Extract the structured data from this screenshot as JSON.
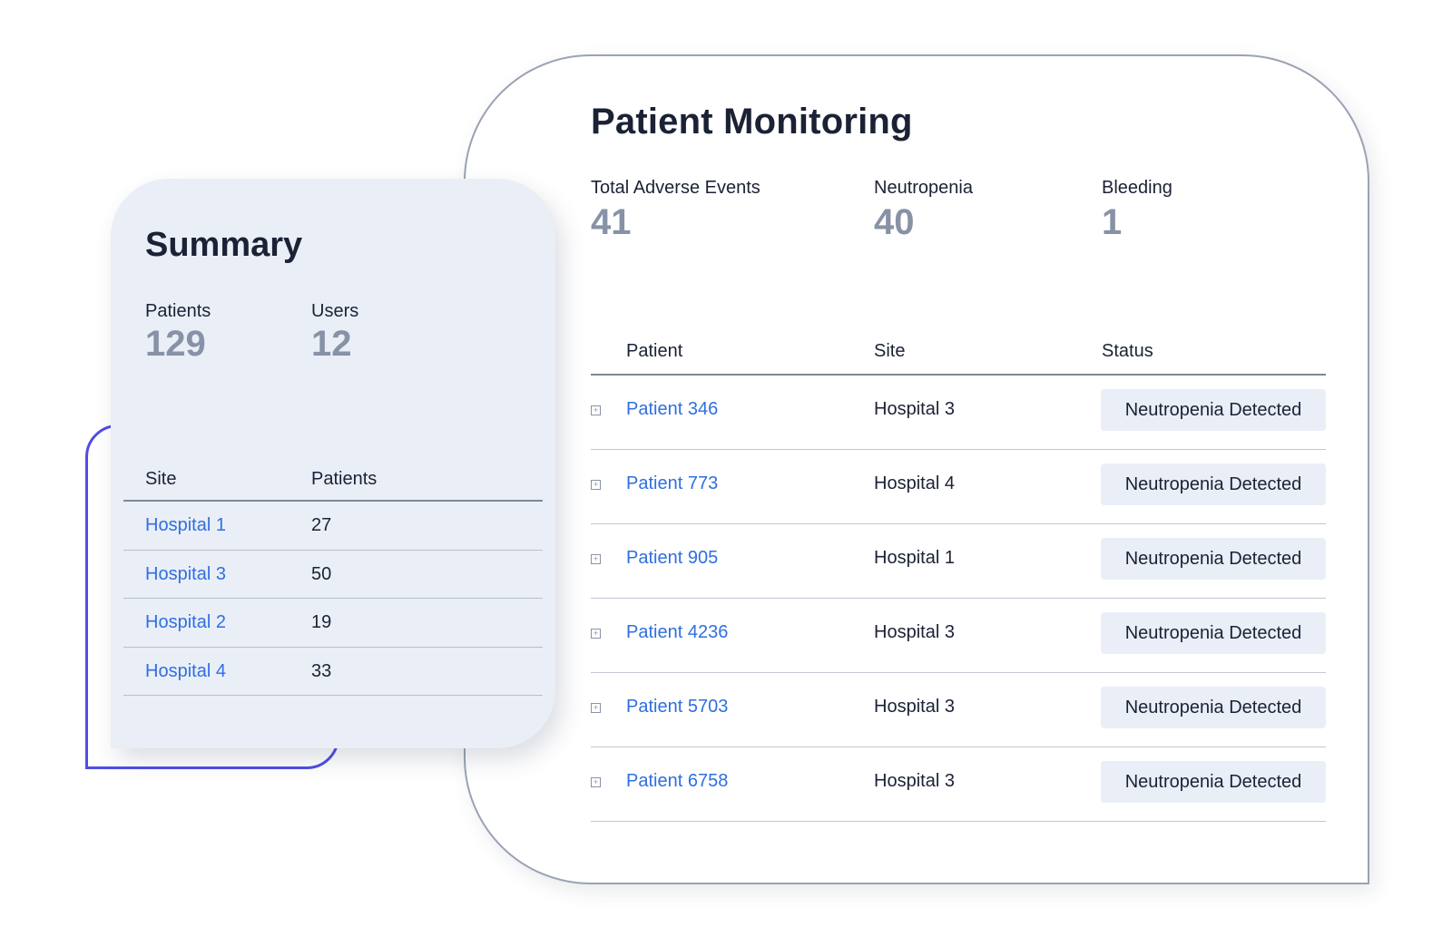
{
  "monitoring": {
    "title": "Patient Monitoring",
    "metrics": [
      {
        "label": "Total Adverse Events",
        "value": "41"
      },
      {
        "label": "Neutropenia",
        "value": "40"
      },
      {
        "label": "Bleeding",
        "value": "1"
      }
    ],
    "table": {
      "headers": {
        "patient": "Patient",
        "site": "Site",
        "status": "Status"
      },
      "rows": [
        {
          "patient": "Patient 346",
          "site": "Hospital 3",
          "status": "Neutropenia Detected"
        },
        {
          "patient": "Patient 773",
          "site": "Hospital 4",
          "status": "Neutropenia Detected"
        },
        {
          "patient": "Patient 905",
          "site": "Hospital 1",
          "status": "Neutropenia Detected"
        },
        {
          "patient": "Patient 4236",
          "site": "Hospital 3",
          "status": "Neutropenia Detected"
        },
        {
          "patient": "Patient 5703",
          "site": "Hospital 3",
          "status": "Neutropenia Detected"
        },
        {
          "patient": "Patient 6758",
          "site": "Hospital 3",
          "status": "Neutropenia Detected"
        }
      ]
    }
  },
  "summary": {
    "title": "Summary",
    "metrics": [
      {
        "label": "Patients",
        "value": "129"
      },
      {
        "label": "Users",
        "value": "12"
      }
    ],
    "table": {
      "headers": {
        "site": "Site",
        "patients": "Patients"
      },
      "rows": [
        {
          "site": "Hospital 1",
          "patients": "27"
        },
        {
          "site": "Hospital 3",
          "patients": "50"
        },
        {
          "site": "Hospital 2",
          "patients": "19"
        },
        {
          "site": "Hospital 4",
          "patients": "33"
        }
      ]
    }
  },
  "icons": {
    "expand": "expand-icon"
  },
  "colors": {
    "link": "#2f6fe0",
    "accent_outline": "#4f4ee6",
    "metric_value": "#8792a6",
    "badge_bg": "#e9eef7",
    "summary_bg": "#eaeef7"
  }
}
